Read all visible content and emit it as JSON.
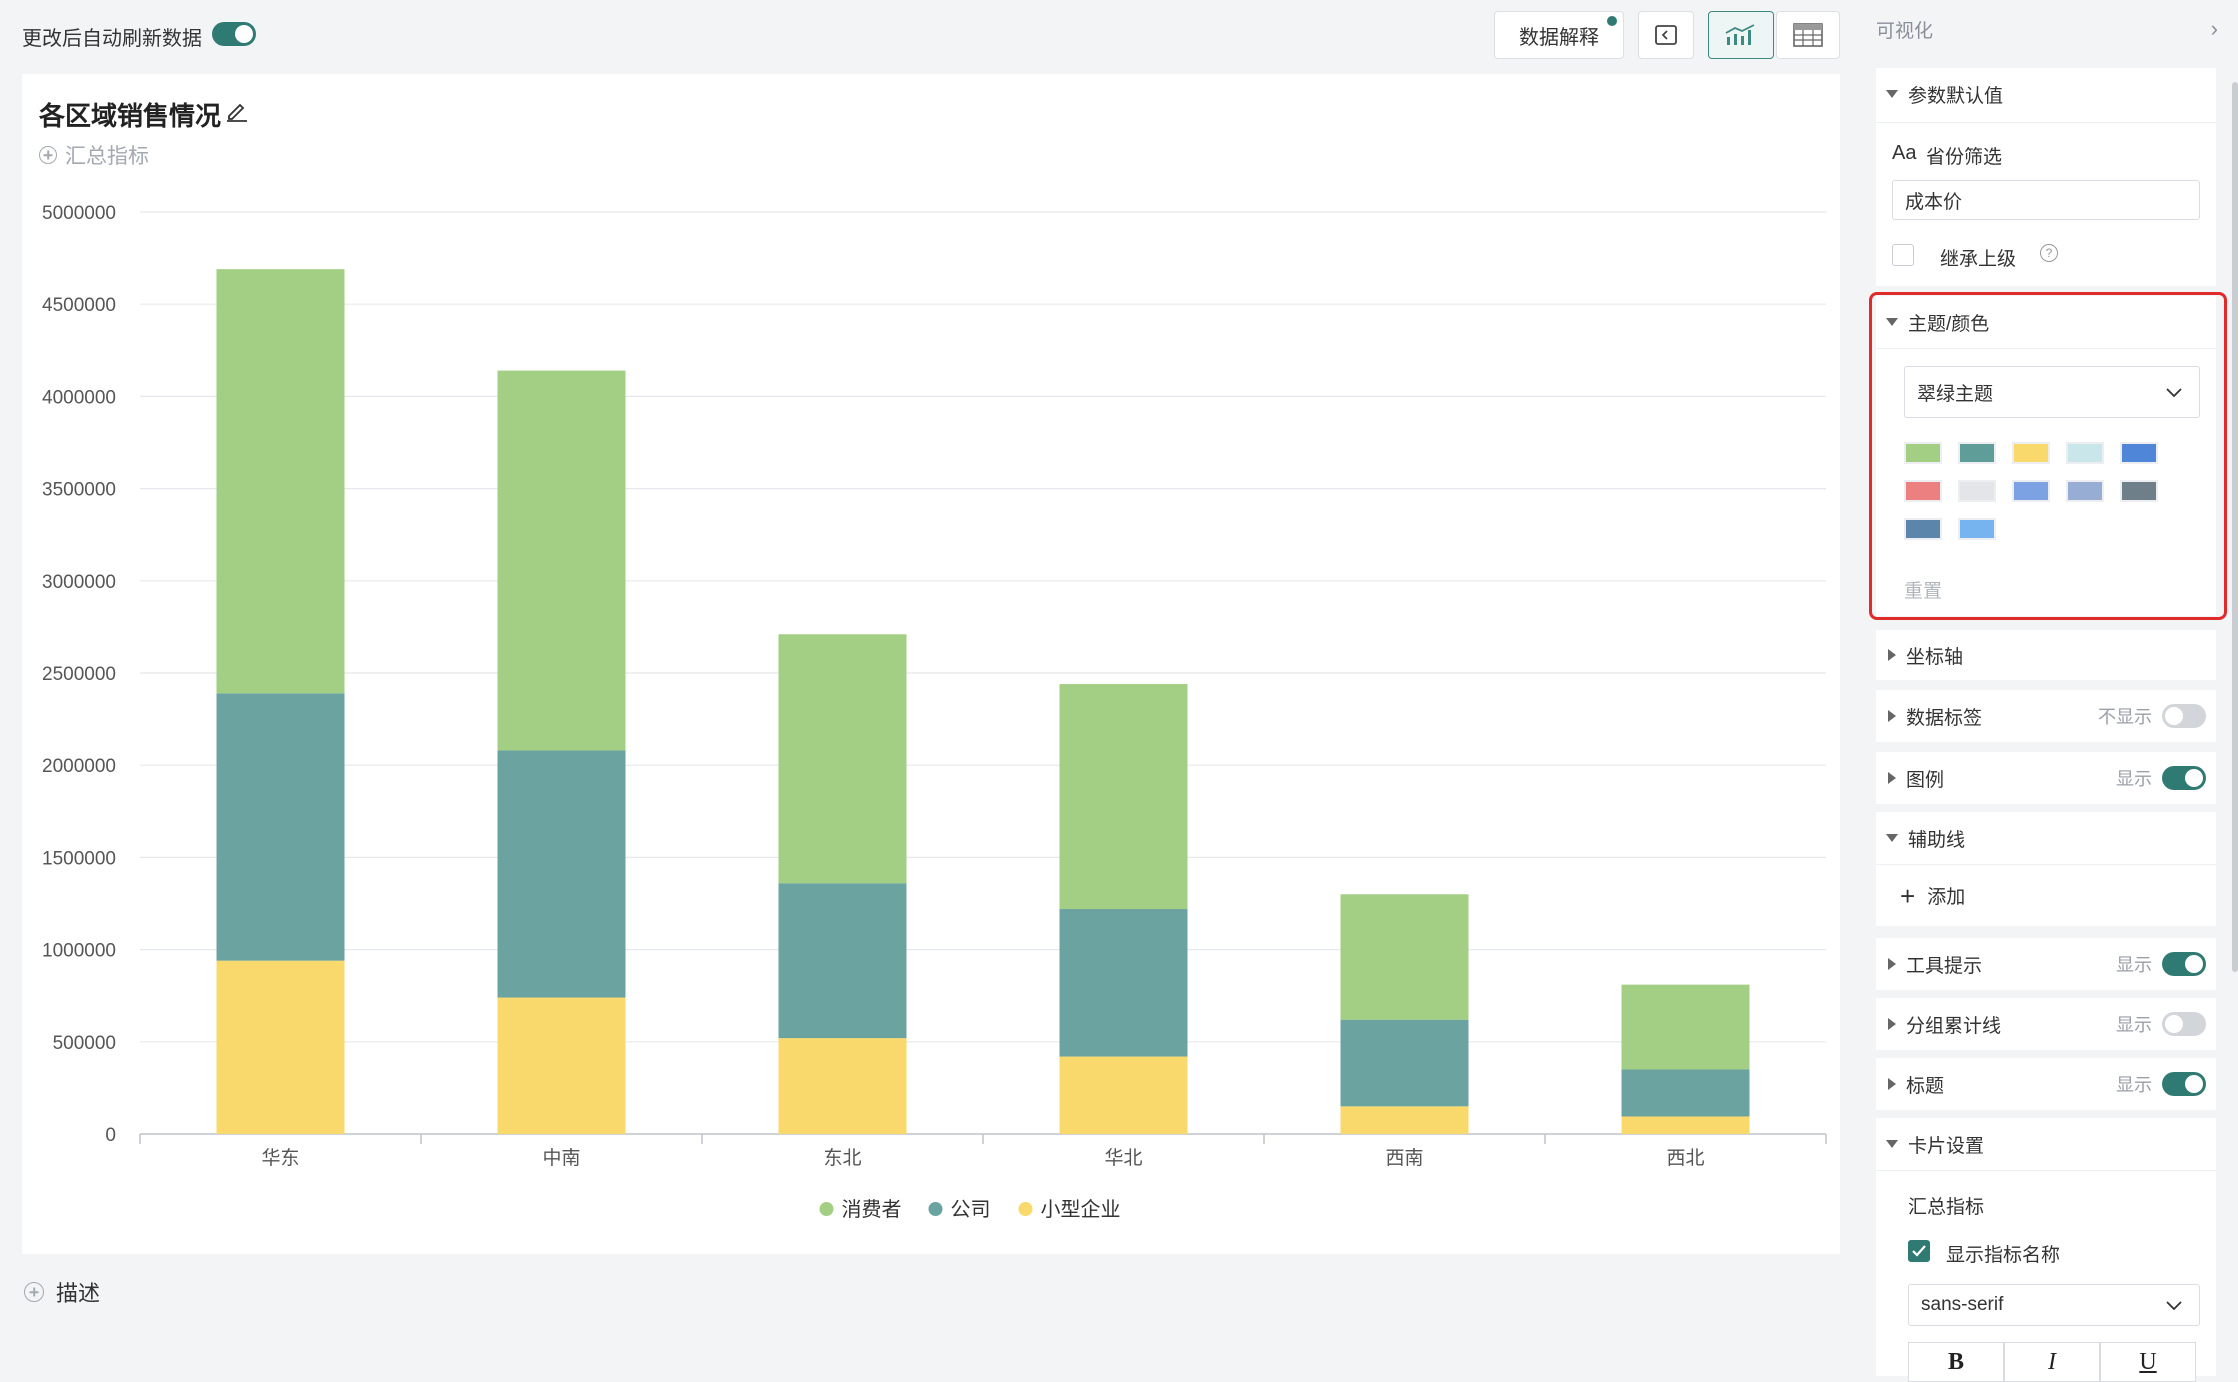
{
  "topbar": {
    "auto_refresh_label": "更改后自动刷新数据",
    "auto_refresh_on": true,
    "data_explain_label": "数据解释"
  },
  "card": {
    "title": "各区域销售情况",
    "summary_label": "汇总指标"
  },
  "description_label": "描述",
  "chart_data": {
    "type": "bar",
    "stacked": true,
    "categories": [
      "华东",
      "中南",
      "东北",
      "华北",
      "西南",
      "西北"
    ],
    "series": [
      {
        "name": "小型企业",
        "color": "#f9d86c",
        "values": [
          940000,
          740000,
          520000,
          420000,
          150000,
          95000
        ]
      },
      {
        "name": "公司",
        "color": "#6ba3a0",
        "values": [
          1450000,
          1340000,
          840000,
          800000,
          470000,
          255000
        ]
      },
      {
        "name": "消费者",
        "color": "#a3cf85",
        "values": [
          2300000,
          2060000,
          1350000,
          1220000,
          680000,
          460000
        ]
      }
    ],
    "legend_order": [
      "消费者",
      "公司",
      "小型企业"
    ],
    "ylim": [
      0,
      5000000
    ],
    "yticks": [
      0,
      500000,
      1000000,
      1500000,
      2000000,
      2500000,
      3000000,
      3500000,
      4000000,
      4500000,
      5000000
    ],
    "ytick_labels": [
      "0",
      "500000",
      "1000000",
      "1500000",
      "2000000",
      "2500000",
      "3000000",
      "3500000",
      "4000000",
      "4500000",
      "5000000"
    ],
    "grid": true,
    "legend_position": "bottom-center"
  },
  "panel": {
    "title": "可视化",
    "param_default": {
      "label": "参数默认值",
      "filter_label": "省份筛选",
      "filter_icon_text": "Aa",
      "filter_value": "成本价",
      "inherit_label": "继承上级"
    },
    "theme": {
      "label": "主题/颜色",
      "selected": "翠绿主题",
      "swatches": [
        "#a3cf85",
        "#5f9d98",
        "#f9d86c",
        "#c9e6ea",
        "#4f86d8",
        "#ec8080",
        "#e3e5e8",
        "#7da2e3",
        "#98add3",
        "#6e7f8a",
        "#5c85ac",
        "#76b4f0"
      ],
      "reset_label": "重置"
    },
    "axis_label": "坐标轴",
    "data_label": {
      "label": "数据标签",
      "status": "不显示",
      "on": false
    },
    "legend": {
      "label": "图例",
      "status": "显示",
      "on": true
    },
    "aux_line": {
      "label": "辅助线",
      "add_label": "添加"
    },
    "tooltip": {
      "label": "工具提示",
      "status": "显示",
      "on": true
    },
    "group_cumulative": {
      "label": "分组累计线",
      "status": "显示",
      "on": false
    },
    "title_setting": {
      "label": "标题",
      "status": "显示",
      "on": true
    },
    "card_settings": {
      "label": "卡片设置",
      "summary_label": "汇总指标",
      "show_name_label": "显示指标名称",
      "font": "sans-serif",
      "bold": "B",
      "italic": "I",
      "underline": "U"
    }
  }
}
